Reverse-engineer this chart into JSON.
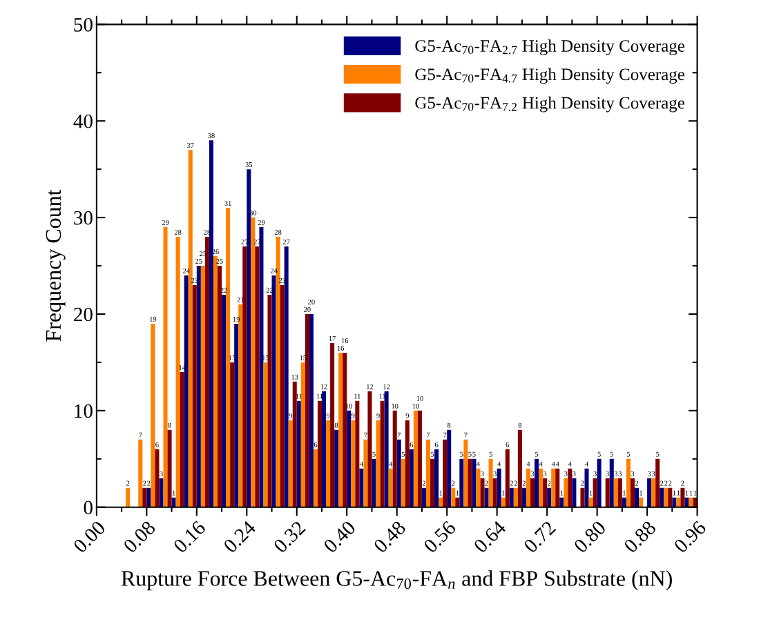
{
  "chart_data": {
    "type": "histogram",
    "xlabel": "Rupture Force Between G5-Ac$_{70}$-FA$_{n}$ and FBP Substrate (nN)",
    "ylabel": "Frequency Count",
    "bins": [
      0.04,
      0.06,
      0.08,
      0.1,
      0.12,
      0.14,
      0.16,
      0.18,
      0.2,
      0.22,
      0.24,
      0.26,
      0.28,
      0.3,
      0.32,
      0.34,
      0.36,
      0.38,
      0.4,
      0.42,
      0.44,
      0.46,
      0.48,
      0.5,
      0.52,
      0.54,
      0.56,
      0.58,
      0.6,
      0.62,
      0.64,
      0.66,
      0.68,
      0.7,
      0.72,
      0.74,
      0.76,
      0.78,
      0.8,
      0.82,
      0.84,
      0.86,
      0.88,
      0.9,
      0.92,
      0.94,
      0.96
    ],
    "series": [
      {
        "name": "G5-Ac$_{70}$-FA$_{2.7}$ High Density Coverage",
        "color": "#000080",
        "values": [
          null,
          null,
          2,
          3,
          1,
          24,
          25,
          38,
          22,
          19,
          35,
          29,
          24,
          27,
          11,
          20,
          12,
          8,
          10,
          4,
          5,
          12,
          7,
          6,
          2,
          6,
          8,
          5,
          5,
          2,
          4,
          2,
          2,
          5,
          2,
          1,
          3,
          4,
          5,
          5,
          1,
          2,
          3,
          2,
          1,
          1
        ]
      },
      {
        "name": "G5-Ac$_{70}$-FA$_{4.7}$ High Density Coverage",
        "color": "#ff8000",
        "values": [
          2,
          7,
          19,
          29,
          28,
          37,
          25,
          26,
          31,
          21,
          30,
          15,
          28,
          9,
          15,
          6,
          9,
          16,
          9,
          7,
          9,
          4,
          5,
          10,
          7,
          1,
          2,
          7,
          4,
          5,
          1,
          2,
          4,
          4,
          4,
          3,
          null,
          1,
          null,
          3,
          5,
          1,
          3,
          2,
          1,
          1
        ]
      },
      {
        "name": "G5-Ac$_{70}$-FA$_{7.2}$ High Density Coverage",
        "color": "#800000",
        "values": [
          null,
          2,
          6,
          8,
          14,
          23,
          28,
          25,
          15,
          27,
          27,
          22,
          23,
          13,
          20,
          11,
          17,
          16,
          11,
          12,
          11,
          10,
          9,
          10,
          5,
          7,
          1,
          5,
          3,
          3,
          6,
          8,
          3,
          3,
          4,
          4,
          2,
          3,
          3,
          3,
          3,
          null,
          5,
          2,
          2,
          1
        ]
      }
    ],
    "data_labels": true,
    "xlim": [
      0,
      0.96
    ],
    "xticks": [
      {
        "value": 0,
        "label": "0.00"
      },
      {
        "value": 0.08,
        "label": "0.08"
      },
      {
        "value": 0.16,
        "label": "0.16"
      },
      {
        "value": 0.24,
        "label": "0.24"
      },
      {
        "value": 0.32,
        "label": "0.32"
      },
      {
        "value": 0.4,
        "label": "0.40"
      },
      {
        "value": 0.48,
        "label": "0.48"
      },
      {
        "value": 0.56,
        "label": "0.56"
      },
      {
        "value": 0.64,
        "label": "0.64"
      },
      {
        "value": 0.72,
        "label": "0.72"
      },
      {
        "value": 0.8,
        "label": "0.80"
      },
      {
        "value": 0.88,
        "label": "0.88"
      },
      {
        "value": 0.96,
        "label": "0.96"
      }
    ],
    "ylim": [
      0,
      50
    ],
    "yticks": [
      0,
      10,
      20,
      30,
      40,
      50
    ],
    "grid": false,
    "legend": "top right"
  }
}
